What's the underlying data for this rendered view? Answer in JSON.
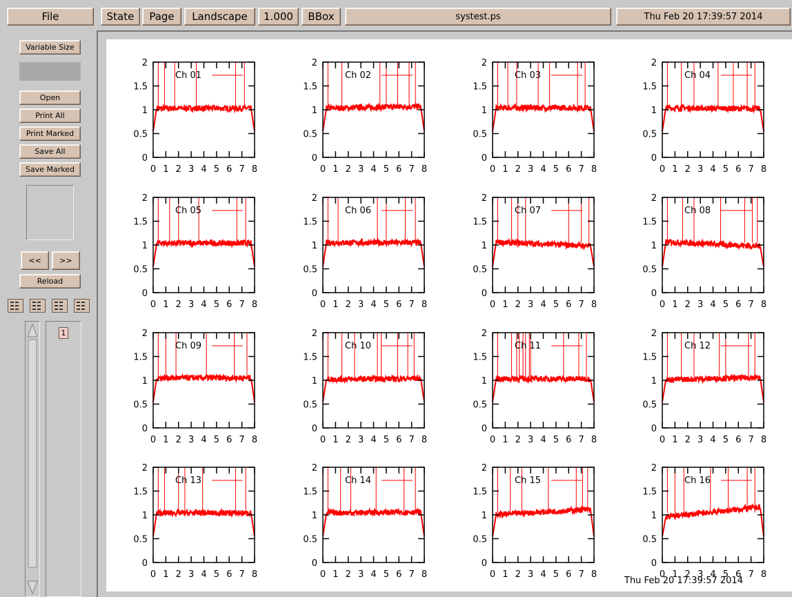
{
  "toolbar": {
    "file": "File",
    "state": "State",
    "page": "Page",
    "orientation": "Landscape",
    "magnification": "1.000",
    "bbox": "BBox",
    "filename": "systest.ps",
    "date": "Thu Feb 20 17:39:57 2014"
  },
  "sidebar": {
    "variable_size": "Variable Size",
    "open": "Open",
    "print_all": "Print All",
    "print_marked": "Print Marked",
    "save_all": "Save All",
    "save_marked": "Save Marked",
    "prev": "<<",
    "next": ">>",
    "reload": "Reload",
    "page_list": [
      "1"
    ]
  },
  "paper": {
    "footer_date": "Thu Feb 20 17:39:57 2014"
  },
  "colors": {
    "trace": "#ff0000",
    "button": "#d7c3b3",
    "background": "#c9c9c9"
  },
  "chart_data": {
    "type": "line",
    "x_ticks": [
      "0",
      "1",
      "2",
      "3",
      "4",
      "5",
      "6",
      "7",
      "8"
    ],
    "y_ticks": [
      "0",
      "0.5",
      "1",
      "1.5",
      "2"
    ],
    "xlim": [
      0,
      8
    ],
    "ylim": [
      0,
      2
    ],
    "plots": [
      {
        "label": "Ch 01",
        "level": 1.03,
        "slope": 0.0,
        "spikes": [
          0.4,
          0.9,
          1.7,
          3.4,
          6.5,
          7.2
        ]
      },
      {
        "label": "Ch 02",
        "level": 1.03,
        "slope": 0.04,
        "spikes": [
          0.4,
          1.5,
          4.5,
          5.0,
          5.9,
          6.8,
          7.3
        ]
      },
      {
        "label": "Ch 03",
        "level": 1.04,
        "slope": 0.0,
        "spikes": [
          0.4,
          1.2,
          1.9,
          3.6,
          4.5,
          6.7,
          7.3
        ]
      },
      {
        "label": "Ch 04",
        "level": 1.04,
        "slope": -0.02,
        "spikes": [
          0.4,
          1.5,
          2.5,
          4.4,
          5.6,
          6.7,
          7.3
        ]
      },
      {
        "label": "Ch 05",
        "level": 1.04,
        "slope": 0.0,
        "spikes": [
          0.4,
          1.3,
          2.0,
          3.6,
          6.6,
          7.3
        ]
      },
      {
        "label": "Ch 06",
        "level": 1.05,
        "slope": 0.0,
        "spikes": [
          0.4,
          1.2,
          4.3,
          5.0,
          6.5,
          7.3
        ]
      },
      {
        "label": "Ch 07",
        "level": 1.06,
        "slope": -0.08,
        "spikes": [
          0.4,
          1.5,
          2.0,
          2.6,
          6.0,
          7.0,
          7.6
        ]
      },
      {
        "label": "Ch 08",
        "level": 1.07,
        "slope": -0.1,
        "spikes": [
          0.4,
          1.6,
          2.5,
          4.6,
          6.5,
          7.1,
          7.5
        ]
      },
      {
        "label": "Ch 09",
        "level": 1.05,
        "slope": 0.0,
        "spikes": [
          0.4,
          1.0,
          1.8,
          4.2,
          6.4,
          7.4
        ]
      },
      {
        "label": "Ch 10",
        "level": 1.02,
        "slope": 0.02,
        "spikes": [
          0.4,
          1.5,
          2.5,
          4.3,
          4.6,
          5.9,
          6.7,
          7.2
        ]
      },
      {
        "label": "Ch 11",
        "level": 1.03,
        "slope": 0.0,
        "spikes": [
          0.4,
          1.5,
          1.9,
          2.1,
          2.4,
          2.6,
          2.9,
          3.0,
          5.6,
          6.8,
          7.4
        ]
      },
      {
        "label": "Ch 12",
        "level": 1.01,
        "slope": 0.05,
        "spikes": [
          0.4,
          1.5,
          2.5,
          4.5,
          5.0,
          6.8,
          7.3
        ]
      },
      {
        "label": "Ch 13",
        "level": 1.04,
        "slope": 0.0,
        "spikes": [
          0.4,
          0.9,
          2.0,
          2.5,
          3.9,
          6.5,
          7.3
        ]
      },
      {
        "label": "Ch 14",
        "level": 1.04,
        "slope": 0.02,
        "spikes": [
          0.4,
          1.4,
          2.2,
          4.2,
          6.4,
          7.3
        ]
      },
      {
        "label": "Ch 15",
        "level": 1.0,
        "slope": 0.12,
        "spikes": [
          0.4,
          1.4,
          2.3,
          4.4,
          6.6,
          7.1,
          7.5
        ]
      },
      {
        "label": "Ch 16",
        "level": 0.95,
        "slope": 0.22,
        "spikes": [
          0.4,
          1.0,
          1.7,
          3.8,
          5.2,
          6.7,
          7.3
        ]
      }
    ]
  }
}
